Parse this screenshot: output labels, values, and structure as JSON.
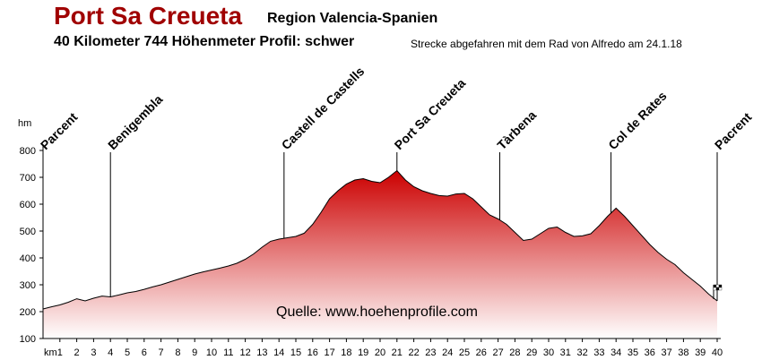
{
  "header": {
    "title": "Port Sa Creueta",
    "region": "Region Valencia-Spanien",
    "info": "40 Kilometer  744 Höhenmeter  Profil: schwer",
    "note": "Strecke abgefahren mit dem Rad von Alfredo am 24.1.18"
  },
  "chart_data": {
    "type": "area",
    "ylabel": "hm",
    "xlabel_unit": "km",
    "xlim": [
      0,
      40
    ],
    "ylim": [
      100,
      800
    ],
    "yticks": [
      100,
      200,
      300,
      400,
      500,
      600,
      700,
      800
    ],
    "xticks": [
      1,
      2,
      3,
      4,
      5,
      6,
      7,
      8,
      9,
      10,
      11,
      12,
      13,
      14,
      15,
      16,
      17,
      18,
      19,
      20,
      21,
      22,
      23,
      24,
      25,
      26,
      27,
      28,
      29,
      30,
      31,
      32,
      33,
      34,
      35,
      36,
      37,
      38,
      39,
      40
    ],
    "series": [
      {
        "x": [
          0,
          0.5,
          1,
          1.5,
          2,
          2.5,
          3,
          3.5,
          4,
          4.5,
          5,
          5.5,
          6,
          6.5,
          7,
          7.5,
          8,
          8.5,
          9,
          9.5,
          10,
          10.5,
          11,
          11.5,
          12,
          12.5,
          13,
          13.5,
          14,
          14.5,
          15,
          15.5,
          16,
          16.5,
          17,
          17.5,
          18,
          18.5,
          19,
          19.5,
          20,
          20.5,
          21,
          21.5,
          22,
          22.5,
          23,
          23.5,
          24,
          24.5,
          25,
          25.5,
          26,
          26.5,
          27,
          27.5,
          28,
          28.5,
          29,
          29.5,
          30,
          30.5,
          31,
          31.5,
          32,
          32.5,
          33,
          33.5,
          34,
          34.5,
          35,
          35.5,
          36,
          36.5,
          37,
          37.5,
          38,
          38.5,
          39,
          39.5,
          40
        ],
        "y": [
          210,
          218,
          225,
          235,
          248,
          240,
          250,
          258,
          255,
          262,
          270,
          275,
          283,
          292,
          300,
          310,
          320,
          330,
          340,
          348,
          355,
          362,
          370,
          380,
          395,
          415,
          440,
          462,
          470,
          475,
          480,
          492,
          525,
          570,
          620,
          650,
          675,
          690,
          695,
          685,
          680,
          700,
          725,
          690,
          665,
          650,
          640,
          632,
          630,
          638,
          640,
          620,
          590,
          560,
          545,
          525,
          495,
          465,
          470,
          490,
          510,
          515,
          495,
          480,
          482,
          490,
          520,
          555,
          585,
          555,
          520,
          485,
          450,
          420,
          395,
          375,
          345,
          320,
          295,
          265,
          240
        ]
      }
    ],
    "waypoints": [
      {
        "label": "Parcent",
        "km": 0
      },
      {
        "label": "Benigembla",
        "km": 4
      },
      {
        "label": "Castell de Castells",
        "km": 14.3
      },
      {
        "label": "Port Sa Creueta",
        "km": 21
      },
      {
        "label": "Tàrbena",
        "km": 27.1
      },
      {
        "label": "Col de Rates",
        "km": 33.7
      },
      {
        "label": "Pacrent",
        "km": 40
      }
    ],
    "source": "Quelle: www.hoehenprofile.com",
    "colors": {
      "fill_top": "#cc0000",
      "fill_bottom": "#ffffff",
      "line": "#000000"
    }
  }
}
